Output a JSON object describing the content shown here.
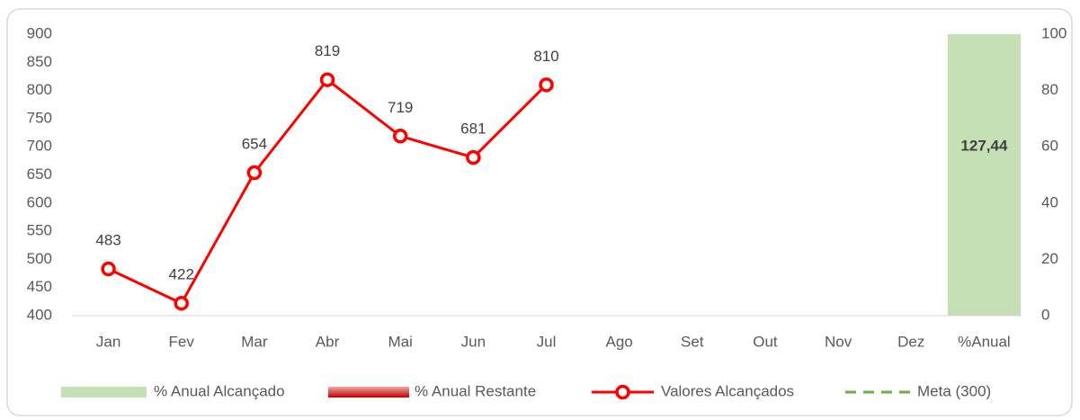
{
  "chart_data": {
    "type": "combo",
    "categories": [
      "Jan",
      "Fev",
      "Mar",
      "Abr",
      "Mai",
      "Jun",
      "Jul",
      "Ago",
      "Set",
      "Out",
      "Nov",
      "Dez",
      "%Anual"
    ],
    "ylim": [
      400,
      900
    ],
    "yticks": [
      400,
      450,
      500,
      550,
      600,
      650,
      700,
      750,
      800,
      850,
      900
    ],
    "y2lim": [
      0,
      100
    ],
    "y2ticks": [
      0,
      20,
      40,
      60,
      80,
      100
    ],
    "series": [
      {
        "name": "% Anual Alcançado",
        "type": "bar",
        "axis": "y2",
        "color": "#c5e0b4",
        "values": [
          null,
          null,
          null,
          null,
          null,
          null,
          null,
          null,
          null,
          null,
          null,
          null,
          127.44
        ],
        "value_labels": [
          null,
          null,
          null,
          null,
          null,
          null,
          null,
          null,
          null,
          null,
          null,
          null,
          "127,44"
        ]
      },
      {
        "name": "% Anual Restante",
        "type": "bar",
        "axis": "y2",
        "color": "#e05a5a",
        "values": [
          null,
          null,
          null,
          null,
          null,
          null,
          null,
          null,
          null,
          null,
          null,
          null,
          0
        ]
      },
      {
        "name": "Valores Alcançados",
        "type": "line",
        "color": "#ff0000",
        "values": [
          483,
          422,
          654,
          819,
          719,
          681,
          810,
          null,
          null,
          null,
          null,
          null,
          null
        ]
      },
      {
        "name": "Meta (300)",
        "type": "dashed-line",
        "color": "#70ad47",
        "values": [
          300,
          300,
          300,
          300,
          300,
          300,
          300,
          300,
          300,
          300,
          300,
          300,
          null
        ]
      }
    ]
  }
}
